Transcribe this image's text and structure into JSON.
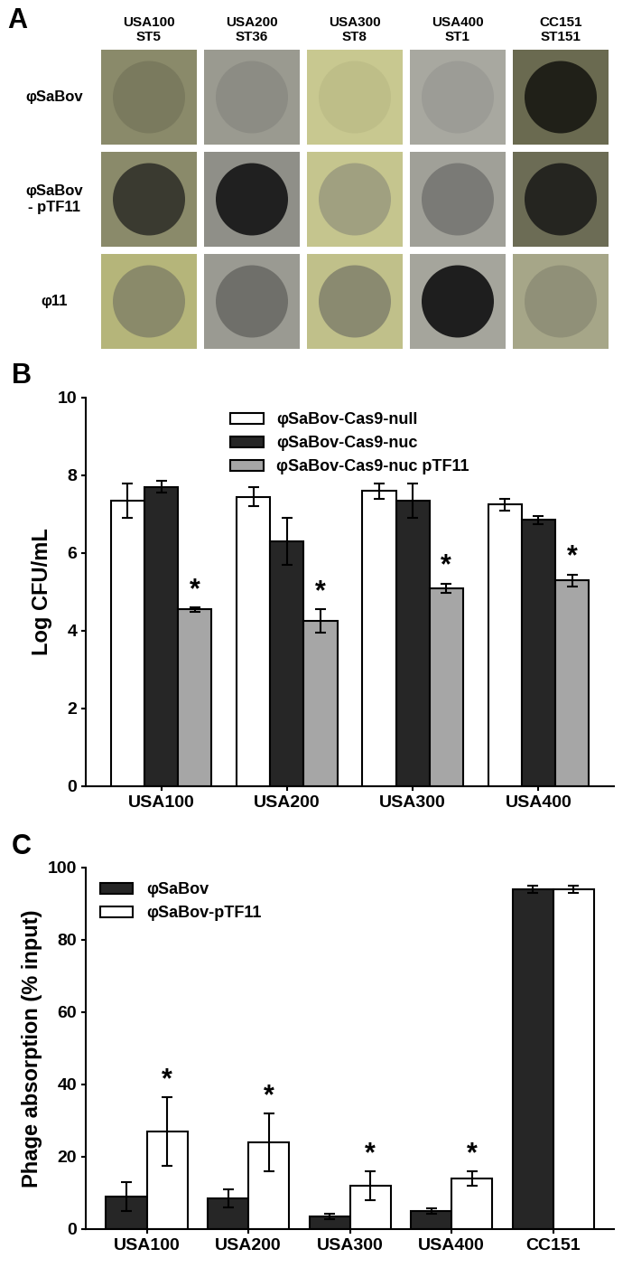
{
  "panel_A": {
    "panel_label": "A",
    "columns": [
      "USA100\nST5",
      "USA200\nST36",
      "USA300\nST8",
      "USA400\nST1",
      "CC151\nST151"
    ],
    "rows": [
      "φSaBov",
      "φSaBov\n- pTF11",
      "φ11"
    ]
  },
  "chart_data": [
    {
      "type": "bar",
      "panel_label": "B",
      "y_label": "Log CFU/mL",
      "categories": [
        "USA100",
        "USA200",
        "USA300",
        "USA400"
      ],
      "ylim": [
        0,
        10
      ],
      "yticks": [
        0,
        2,
        4,
        6,
        8,
        10
      ],
      "legend": "upper center",
      "series": [
        {
          "name": "φSaBov-Cas9-null",
          "color": "#ffffff",
          "values": [
            7.35,
            7.45,
            7.6,
            7.25
          ],
          "errors": [
            0.45,
            0.25,
            0.2,
            0.15
          ],
          "marks": [
            null,
            null,
            null,
            null
          ]
        },
        {
          "name": "φSaBov-Cas9-nuc",
          "color": "#262626",
          "values": [
            7.7,
            6.3,
            7.35,
            6.85
          ],
          "errors": [
            0.15,
            0.6,
            0.45,
            0.1
          ],
          "marks": [
            null,
            null,
            null,
            null
          ]
        },
        {
          "name": "φSaBov-Cas9-nuc pTF11",
          "color": "#a6a6a6",
          "values": [
            4.55,
            4.25,
            5.1,
            5.3
          ],
          "errors": [
            0.05,
            0.3,
            0.12,
            0.15
          ],
          "marks": [
            "*",
            "*",
            "*",
            "*"
          ]
        }
      ]
    },
    {
      "type": "bar",
      "panel_label": "C",
      "y_label": "Phage absorption (% input)",
      "categories": [
        "USA100",
        "USA200",
        "USA300",
        "USA400",
        "CC151"
      ],
      "ylim": [
        0,
        100
      ],
      "yticks": [
        0,
        20,
        40,
        60,
        80,
        100
      ],
      "legend": "upper left",
      "series": [
        {
          "name": "φSaBov",
          "color": "#262626",
          "values": [
            9,
            8.5,
            3.5,
            5,
            94
          ],
          "errors": [
            4,
            2.5,
            0.8,
            0.8,
            1
          ],
          "marks": [
            null,
            null,
            null,
            null,
            null
          ]
        },
        {
          "name": "φSaBov-pTF11",
          "color": "#ffffff",
          "values": [
            27,
            24,
            12,
            14,
            94
          ],
          "errors": [
            9.5,
            8,
            4,
            2,
            1
          ],
          "marks": [
            "*",
            "*",
            "*",
            "*",
            null
          ]
        }
      ]
    }
  ]
}
